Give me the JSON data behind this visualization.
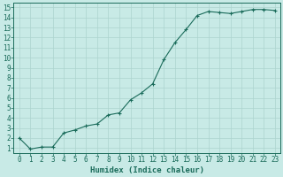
{
  "x": [
    0,
    1,
    2,
    3,
    4,
    5,
    6,
    7,
    8,
    9,
    10,
    11,
    12,
    13,
    14,
    15,
    16,
    17,
    18,
    19,
    20,
    21,
    22,
    23
  ],
  "y": [
    2.0,
    0.9,
    1.1,
    1.1,
    2.5,
    2.8,
    3.2,
    3.4,
    4.3,
    4.5,
    5.8,
    6.5,
    7.4,
    9.8,
    11.5,
    12.8,
    14.2,
    14.6,
    14.5,
    14.4,
    14.6,
    14.8,
    14.8,
    14.7
  ],
  "xlim": [
    -0.5,
    23.5
  ],
  "ylim": [
    0.5,
    15.5
  ],
  "yticks": [
    1,
    2,
    3,
    4,
    5,
    6,
    7,
    8,
    9,
    10,
    11,
    12,
    13,
    14,
    15
  ],
  "xticks": [
    0,
    1,
    2,
    3,
    4,
    5,
    6,
    7,
    8,
    9,
    10,
    11,
    12,
    13,
    14,
    15,
    16,
    17,
    18,
    19,
    20,
    21,
    22,
    23
  ],
  "xlabel": "Humidex (Indice chaleur)",
  "line_color": "#1a6b5a",
  "marker": "+",
  "bg_color": "#c8eae6",
  "grid_color": "#acd4cf",
  "axis_color": "#1a6b5a",
  "label_color": "#1a6b5a",
  "font_size_tick": 5.5,
  "font_size_label": 6.5
}
